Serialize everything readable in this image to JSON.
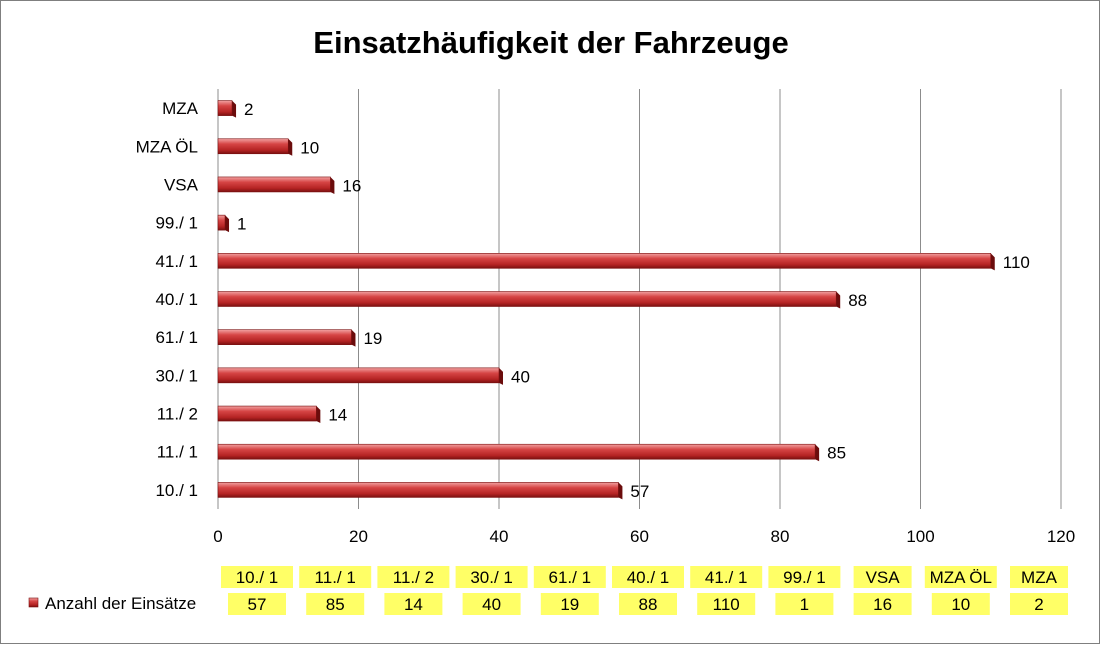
{
  "chart_data": {
    "type": "bar",
    "orientation": "horizontal",
    "title": "Einsatzhäufigkeit der Fahrzeuge",
    "categories": [
      "10./ 1",
      "11./ 1",
      "11./ 2",
      "30./ 1",
      "61./ 1",
      "40./ 1",
      "41./ 1",
      "99./ 1",
      "VSA",
      "MZA ÖL",
      "MZA"
    ],
    "series": [
      {
        "name": "Anzahl der Einsätze",
        "values": [
          57,
          85,
          14,
          40,
          19,
          88,
          110,
          1,
          16,
          10,
          2
        ],
        "color": "#c0392b"
      }
    ],
    "xlim": [
      0,
      120
    ],
    "x_ticks": [
      0,
      20,
      40,
      60,
      80,
      100,
      120
    ],
    "grid": true,
    "data_labels": true,
    "data_table": true,
    "data_table_highlight": "#ffff66"
  }
}
